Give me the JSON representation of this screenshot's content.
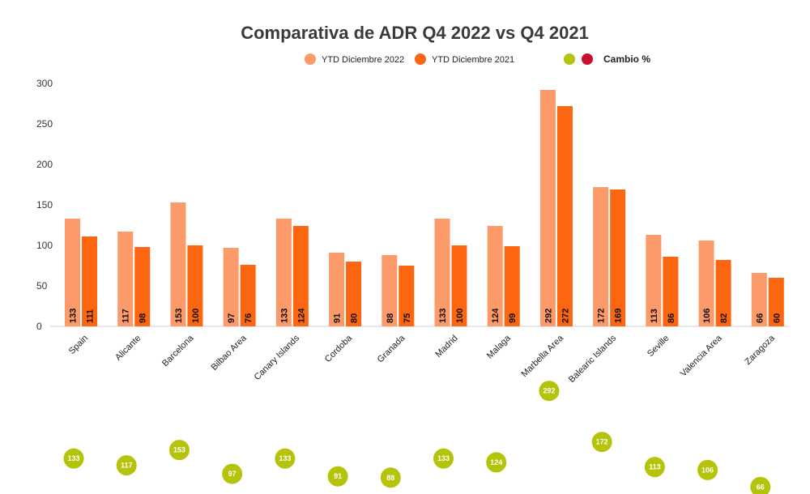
{
  "chart_data": {
    "type": "bar",
    "title": "Comparativa de ADR Q4 2022 vs Q4 2021",
    "categories": [
      "Spain",
      "Alicante",
      "Barcelona",
      "Bilbao Area",
      "Canary Islands",
      "Cordoba",
      "Granada",
      "Madrid",
      "Malaga",
      "Marbella Area",
      "Balearic Islands",
      "Seville",
      "Valencia Area",
      "Zaragoza"
    ],
    "series": [
      {
        "name": "YTD Diciembre 2022",
        "color": "#fc9a6a",
        "values": [
          133,
          117,
          153,
          97,
          133,
          91,
          88,
          133,
          124,
          292,
          172,
          113,
          106,
          66
        ]
      },
      {
        "name": "YTD Diciembre 2021",
        "color": "#fd6610",
        "values": [
          111,
          98,
          100,
          76,
          124,
          80,
          75,
          100,
          99,
          272,
          169,
          86,
          82,
          60
        ]
      }
    ],
    "dot_series": {
      "name": "Cambio %",
      "legend_colors": [
        "#b6c30b",
        "#c8102e"
      ],
      "color": "#b6c30b",
      "labels": [
        "133",
        "117",
        "153",
        "97",
        "133",
        "91",
        "88",
        "133",
        "124",
        "292",
        "172",
        "113",
        "106",
        "66"
      ]
    },
    "y_ticks": [
      0,
      50,
      100,
      150,
      200,
      250,
      300
    ],
    "ylim": [
      0,
      300
    ],
    "xlabel": "",
    "ylabel": "",
    "grid": false,
    "legend_position": "top"
  }
}
